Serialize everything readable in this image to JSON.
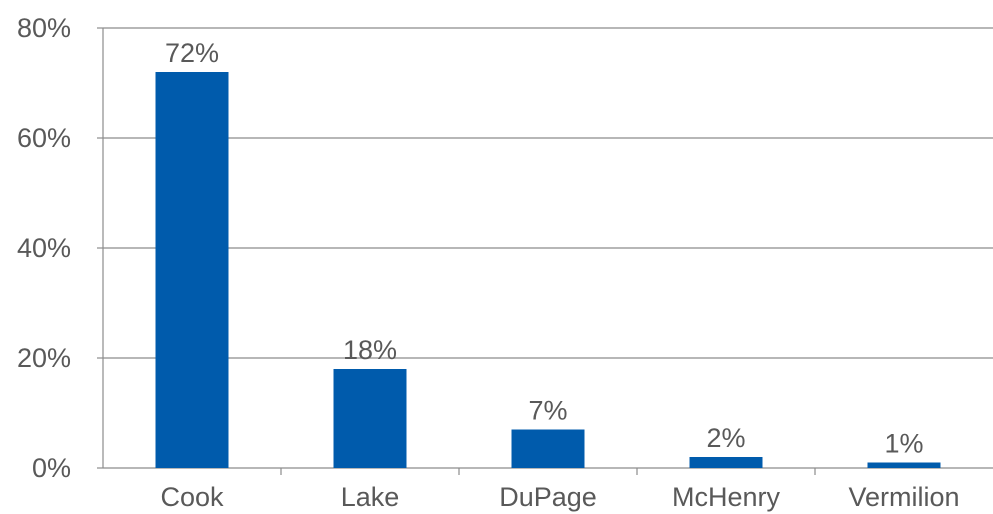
{
  "chart_data": {
    "type": "bar",
    "categories": [
      "Cook",
      "Lake",
      "DuPage",
      "McHenry",
      "Vermilion"
    ],
    "values": [
      72,
      18,
      7,
      2,
      1
    ],
    "data_labels": [
      "72%",
      "18%",
      "7%",
      "2%",
      "1%"
    ],
    "y_ticks": [
      0,
      20,
      40,
      60,
      80
    ],
    "y_tick_labels": [
      "0%",
      "20%",
      "40%",
      "60%",
      "80%"
    ],
    "ylim": [
      0,
      80
    ],
    "grid": true,
    "legend": "none",
    "colors": {
      "bar": "#005bac",
      "text": "#595959",
      "grid": "#8c8c8c"
    }
  }
}
